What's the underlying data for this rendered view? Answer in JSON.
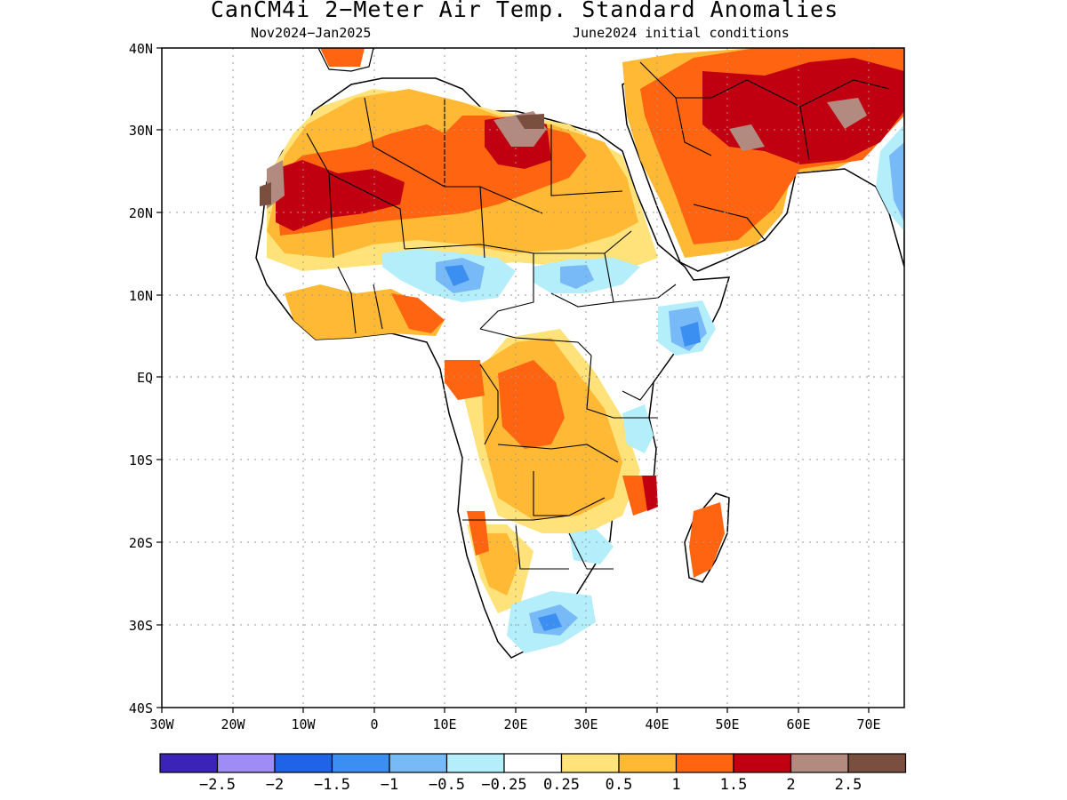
{
  "map": {
    "title": "CanCM4i 2−Meter Air Temp. Standard Anomalies",
    "period": "Nov2024−Jan2025",
    "init": "June2024 initial conditions"
  },
  "axes": {
    "lon_labels": [
      "30W",
      "20W",
      "10W",
      "0",
      "10E",
      "20E",
      "30E",
      "40E",
      "50E",
      "60E",
      "70E"
    ],
    "lat_labels": [
      "40N",
      "30N",
      "20N",
      "10N",
      "EQ",
      "10S",
      "20S",
      "30S",
      "40S"
    ]
  },
  "colorbar": {
    "labels": [
      "−2.5",
      "−2",
      "−1.5",
      "−1",
      "−0.5",
      "−0.25",
      "0.25",
      "0.5",
      "1",
      "1.5",
      "2",
      "2.5"
    ],
    "colors": [
      "#3b23b8",
      "#9f8cf7",
      "#1f64e6",
      "#3b8ff0",
      "#78b9f7",
      "#b4eefa",
      "#ffffff",
      "#ffe27a",
      "#ffb935",
      "#ff6410",
      "#c00010",
      "#b38a80",
      "#7a4f40"
    ]
  }
}
